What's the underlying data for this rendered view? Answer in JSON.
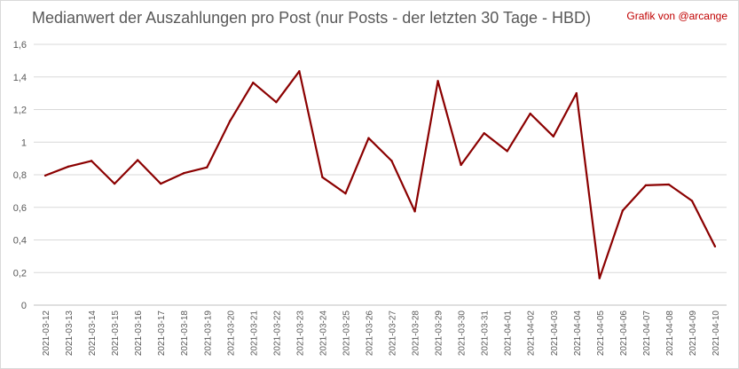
{
  "chart_data": {
    "type": "line",
    "title": "Medianwert der Auszahlungen pro Post (nur Posts - der letzten 30 Tage - HBD)",
    "credit": "Grafik von @arcange",
    "xlabel": "",
    "ylabel": "",
    "ylim": [
      0,
      1.6
    ],
    "ytick_labels": [
      "0",
      "0,2",
      "0,4",
      "0,6",
      "0,8",
      "1",
      "1,2",
      "1,4",
      "1,6"
    ],
    "grid": true,
    "legend": "none",
    "line_color": "#8b0000",
    "categories": [
      "2021-03-12",
      "2021-03-13",
      "2021-03-14",
      "2021-03-15",
      "2021-03-16",
      "2021-03-17",
      "2021-03-18",
      "2021-03-19",
      "2021-03-20",
      "2021-03-21",
      "2021-03-22",
      "2021-03-23",
      "2021-03-24",
      "2021-03-25",
      "2021-03-26",
      "2021-03-27",
      "2021-03-28",
      "2021-03-29",
      "2021-03-30",
      "2021-03-31",
      "2021-04-01",
      "2021-04-02",
      "2021-04-03",
      "2021-04-04",
      "2021-04-05",
      "2021-04-06",
      "2021-04-07",
      "2021-04-08",
      "2021-04-09",
      "2021-04-10"
    ],
    "series": [
      {
        "values": [
          0.795,
          0.85,
          0.885,
          0.745,
          0.89,
          0.745,
          0.81,
          0.845,
          1.13,
          1.365,
          1.245,
          1.435,
          0.785,
          0.685,
          1.025,
          0.885,
          0.575,
          1.375,
          0.86,
          1.055,
          0.945,
          1.175,
          1.035,
          1.3,
          0.165,
          0.58,
          0.735,
          0.74,
          0.64,
          0.36
        ]
      }
    ]
  }
}
